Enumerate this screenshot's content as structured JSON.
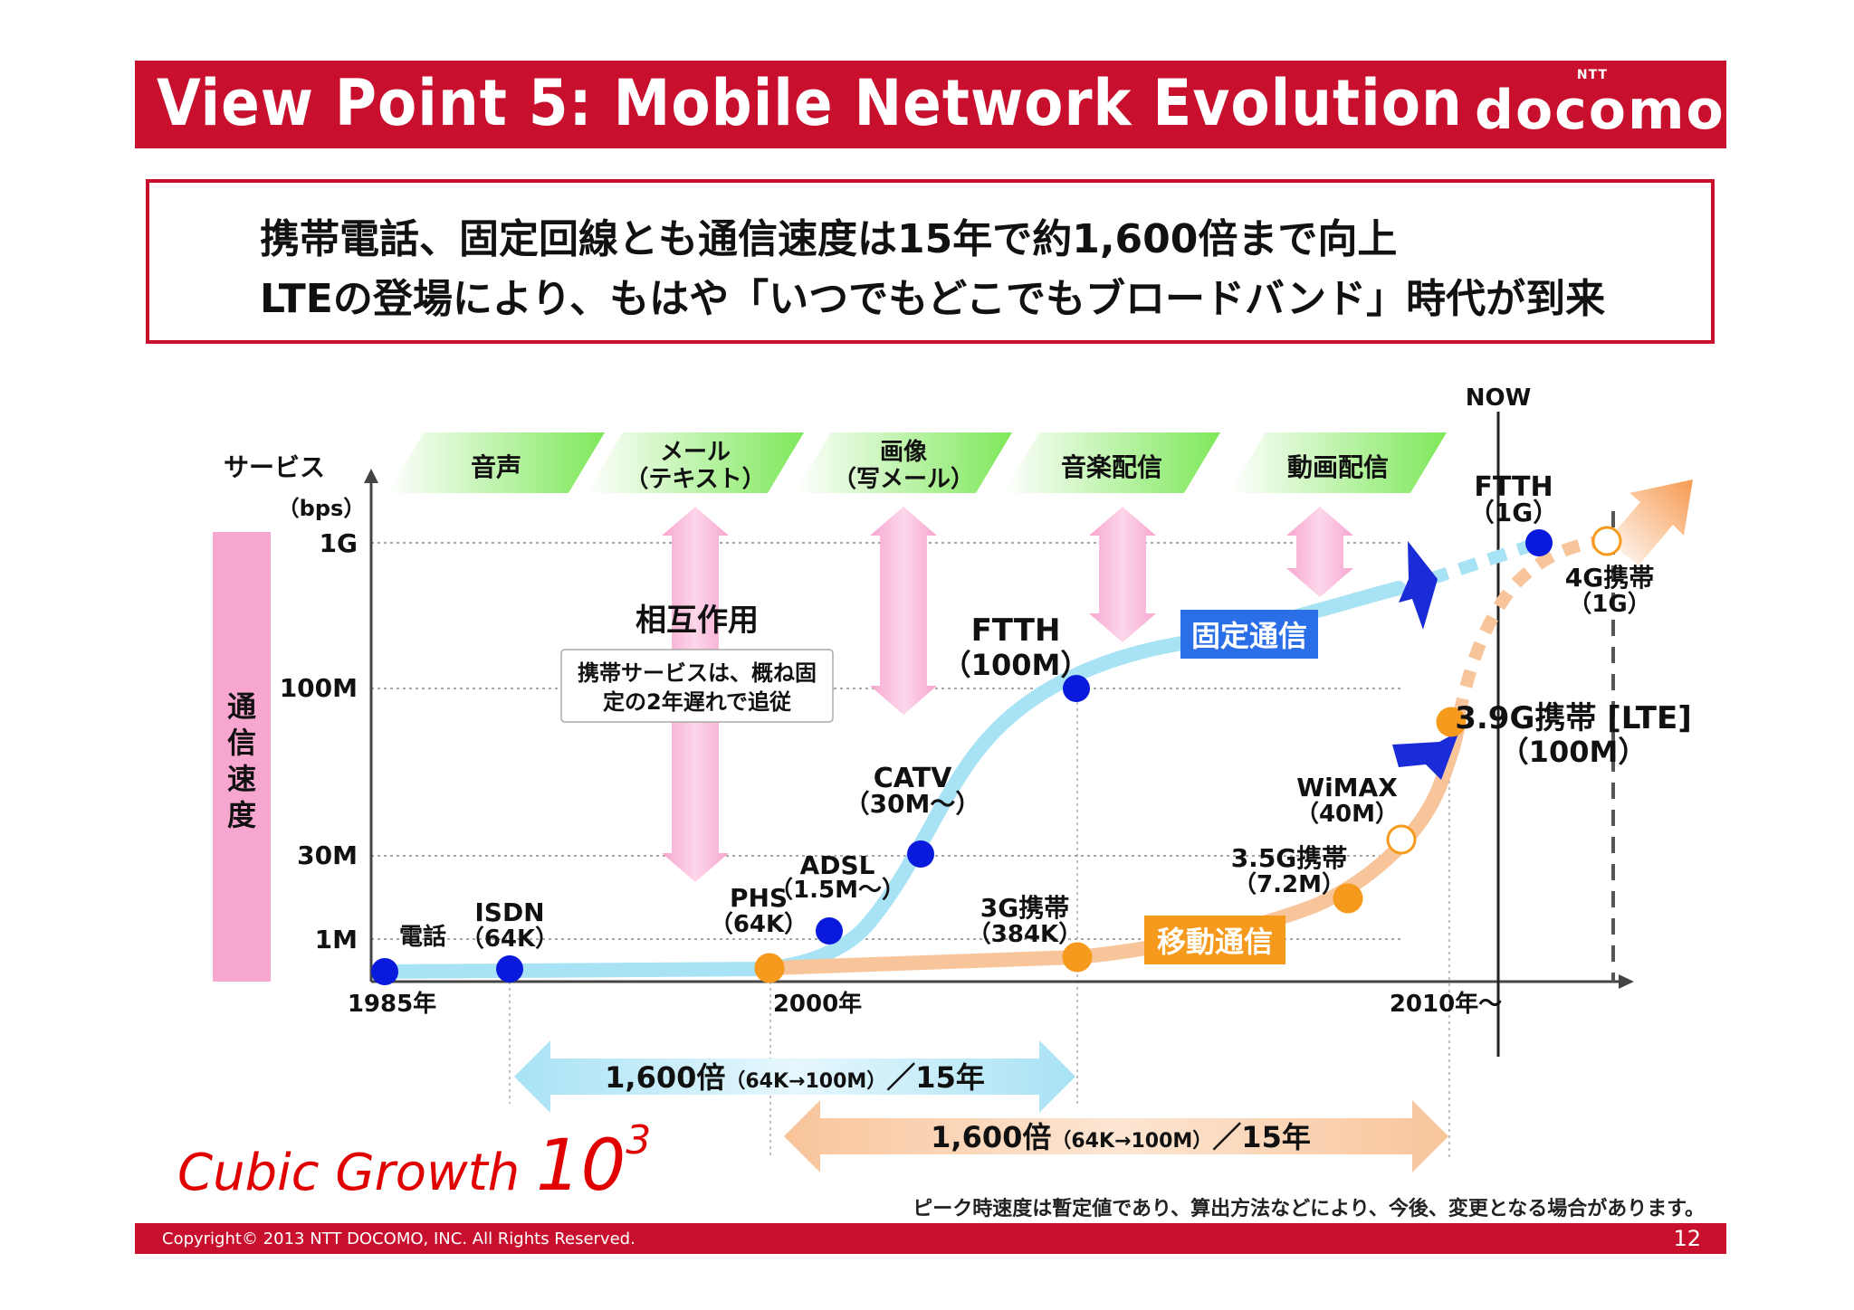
{
  "header": {
    "title": "View Point 5: Mobile Network Evolution",
    "brand_small": "NTT",
    "brand_name": "docomo"
  },
  "summary": {
    "line1": "携帯電話、固定回線とも通信速度は15年で約1,600倍まで向上",
    "line2": "LTEの登場により、もはや「いつでもどこでもブロードバンド」時代が到来"
  },
  "colors": {
    "brand_red": "#c8102e",
    "fixed_line": "#a8e2f5",
    "fixed_point": "#0a1adc",
    "mobile_line": "#f8c49a",
    "mobile_point": "#f59a1c",
    "service_green": "#7ee85a",
    "interaction_pink": "#f7a6cf"
  },
  "chart_data": {
    "type": "line",
    "ylabel_top": "サービス",
    "yunit": "（bps）",
    "ylabel_side": "通信速度",
    "y_ticks": [
      "1G",
      "100M",
      "30M",
      "1M"
    ],
    "x_ticks": [
      "1985年",
      "2000年",
      "2010年～"
    ],
    "now_label": "NOW",
    "services": [
      "音声",
      "メール\n（テキスト）",
      "画像\n（写メール）",
      "音楽配信",
      "動画配信"
    ],
    "interaction": {
      "title": "相互作用",
      "note_line1": "携帯サービスは、概ね固",
      "note_line2": "定の2年遅れで追従"
    },
    "series": [
      {
        "name": "固定通信",
        "points": [
          {
            "label": "電話",
            "sub": ""
          },
          {
            "label": "ISDN",
            "sub": "（64K）"
          },
          {
            "label": "PHS",
            "sub": "（64K）"
          },
          {
            "label": "ADSL",
            "sub": "（1.5M～）"
          },
          {
            "label": "CATV",
            "sub": "（30M～）"
          },
          {
            "label": "FTTH",
            "sub": "（100M）"
          },
          {
            "label": "FTTH",
            "sub": "（1G）"
          }
        ]
      },
      {
        "name": "移動通信",
        "points": [
          {
            "label": "",
            "sub": ""
          },
          {
            "label": "3G携帯",
            "sub": "（384K）"
          },
          {
            "label": "3.5G携帯",
            "sub": "（7.2M）"
          },
          {
            "label": "WiMAX",
            "sub": "（40M）"
          },
          {
            "label": "3.9G携帯 [LTE]",
            "sub": "（100M）"
          },
          {
            "label": "4G携帯",
            "sub": "（1G）"
          }
        ]
      }
    ],
    "growth": [
      {
        "ratio": "1,600倍",
        "detail": "（64K→100M）",
        "period": "／15年"
      },
      {
        "ratio": "1,600倍",
        "detail": "（64K→100M）",
        "period": "／15年"
      }
    ]
  },
  "cubic": {
    "text": "Cubic Growth",
    "base": "10",
    "exp": "3"
  },
  "disclaimer": "ピーク時速度は暫定値であり、算出方法などにより、今後、変更となる場合があります。",
  "footer": {
    "copyright": "Copyright© 2013 NTT DOCOMO, INC. All Rights Reserved.",
    "page": "12"
  }
}
